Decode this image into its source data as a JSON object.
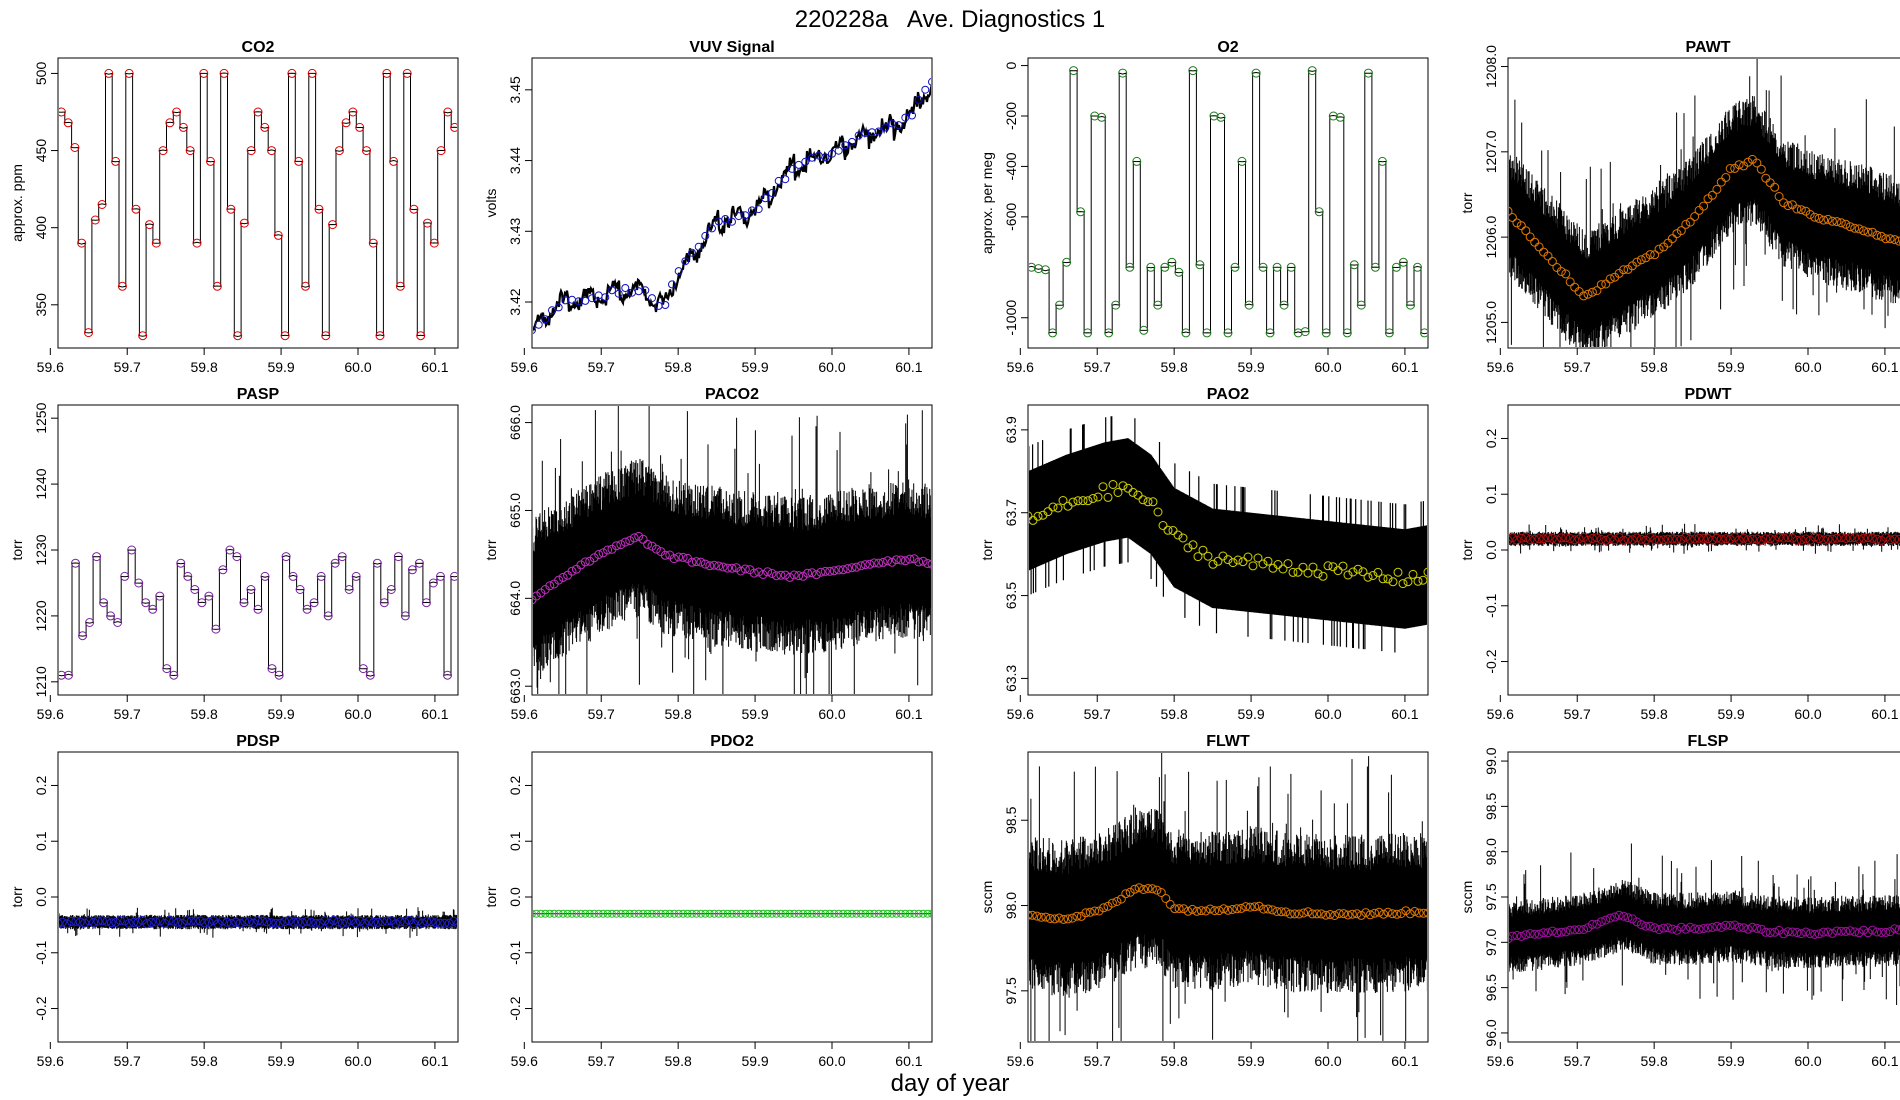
{
  "title": "220228a   Ave. Diagnostics 1",
  "xlabel": "day of year",
  "chart_data": [
    {
      "title": "CO2",
      "type": "line",
      "ylabel": "approx. ppm",
      "xlim": [
        59.61,
        60.13
      ],
      "ylim": [
        322,
        510
      ],
      "xticks": [
        59.6,
        59.7,
        59.8,
        59.9,
        60.0,
        60.1
      ],
      "xtick_labels": [
        "59.6",
        "59.7",
        "59.8",
        "59.9",
        "60.0",
        "60.1"
      ],
      "yticks": [
        350,
        400,
        450,
        500
      ],
      "ytick_labels": [
        "350",
        "400",
        "450",
        "500"
      ],
      "marker_color": "#e00000",
      "pattern": "steps",
      "levels": [
        475,
        468,
        452,
        390,
        332,
        405,
        415,
        500,
        443,
        362,
        500,
        412,
        330,
        402,
        390,
        450,
        468,
        475,
        465,
        450,
        390,
        500,
        443,
        362,
        500,
        412,
        330,
        403,
        450,
        475,
        465,
        450,
        395,
        330,
        500,
        443,
        362,
        500,
        412,
        330,
        402,
        450,
        468,
        475,
        465,
        450,
        390,
        330,
        500,
        443,
        362,
        500,
        412,
        330,
        403,
        390,
        450,
        475,
        465
      ]
    },
    {
      "title": "VUV Signal",
      "type": "line",
      "ylabel": "volts",
      "xlim": [
        59.61,
        60.13
      ],
      "ylim": [
        3.4135,
        3.4545
      ],
      "xticks": [
        59.6,
        59.7,
        59.8,
        59.9,
        60.0,
        60.1
      ],
      "xtick_labels": [
        "59.6",
        "59.7",
        "59.8",
        "59.9",
        "60.0",
        "60.1"
      ],
      "yticks": [
        3.42,
        3.43,
        3.44,
        3.45
      ],
      "ytick_labels": [
        "3.42",
        "3.43",
        "3.44",
        "3.45"
      ],
      "marker_color": "#1010c0",
      "pattern": "trend",
      "points": [
        [
          59.61,
          3.416
        ],
        [
          59.65,
          3.42
        ],
        [
          59.7,
          3.421
        ],
        [
          59.75,
          3.422
        ],
        [
          59.78,
          3.419
        ],
        [
          59.8,
          3.424
        ],
        [
          59.85,
          3.431
        ],
        [
          59.9,
          3.433
        ],
        [
          59.95,
          3.439
        ],
        [
          60.0,
          3.441
        ],
        [
          60.05,
          3.444
        ],
        [
          60.1,
          3.446
        ],
        [
          60.13,
          3.451
        ]
      ]
    },
    {
      "title": "O2",
      "type": "line",
      "ylabel": "approx. per meg",
      "xlim": [
        59.61,
        60.13
      ],
      "ylim": [
        -1120,
        30
      ],
      "xticks": [
        59.6,
        59.7,
        59.8,
        59.9,
        60.0,
        60.1
      ],
      "xtick_labels": [
        "59.6",
        "59.7",
        "59.8",
        "59.9",
        "60.0",
        "60.1"
      ],
      "yticks": [
        0,
        -200,
        -400,
        -600,
        -1000
      ],
      "ytick_labels": [
        "0",
        "-200",
        "-400",
        "-600",
        "-1000"
      ],
      "marker_color": "#1a7a1a",
      "pattern": "steps",
      "levels": [
        -800,
        -805,
        -810,
        -1060,
        -950,
        -780,
        -20,
        -580,
        -1060,
        -200,
        -205,
        -1060,
        -950,
        -30,
        -800,
        -380,
        -1050,
        -800,
        -950,
        -800,
        -780,
        -820,
        -1060,
        -20,
        -790,
        -1060,
        -200,
        -205,
        -1060,
        -800,
        -380,
        -950,
        -30,
        -800,
        -1060,
        -800,
        -950,
        -800,
        -1060,
        -1055,
        -20,
        -580,
        -1060,
        -200,
        -205,
        -1060,
        -790,
        -950,
        -30,
        -800,
        -380,
        -1060,
        -800,
        -780,
        -950,
        -800,
        -1060
      ]
    },
    {
      "title": "PAWT",
      "type": "line",
      "ylabel": "torr",
      "xlim": [
        59.61,
        60.13
      ],
      "ylim": [
        1204.7,
        1208.1
      ],
      "xticks": [
        59.6,
        59.7,
        59.8,
        59.9,
        60.0,
        60.1
      ],
      "xtick_labels": [
        "59.6",
        "59.7",
        "59.8",
        "59.9",
        "60.0",
        "60.1"
      ],
      "yticks": [
        1205.0,
        1206.0,
        1207.0,
        1208.0
      ],
      "ytick_labels": [
        "1205.0",
        "1206.0",
        "1207.0",
        "1208.0"
      ],
      "marker_color": "#e07800",
      "pattern": "smooth",
      "noise": 0.45,
      "points": [
        [
          59.61,
          1206.3
        ],
        [
          59.66,
          1205.8
        ],
        [
          59.71,
          1205.3
        ],
        [
          59.76,
          1205.6
        ],
        [
          59.8,
          1205.8
        ],
        [
          59.85,
          1206.2
        ],
        [
          59.9,
          1206.8
        ],
        [
          59.93,
          1206.9
        ],
        [
          59.97,
          1206.4
        ],
        [
          60.02,
          1206.2
        ],
        [
          60.07,
          1206.1
        ],
        [
          60.13,
          1205.9
        ]
      ]
    },
    {
      "title": "PASP",
      "type": "line",
      "ylabel": "torr",
      "xlim": [
        59.61,
        60.13
      ],
      "ylim": [
        1208,
        1252
      ],
      "xticks": [
        59.6,
        59.7,
        59.8,
        59.9,
        60.0,
        60.1
      ],
      "xtick_labels": [
        "59.6",
        "59.7",
        "59.8",
        "59.9",
        "60.0",
        "60.1"
      ],
      "yticks": [
        1210,
        1220,
        1230,
        1240,
        1250
      ],
      "ytick_labels": [
        "1210",
        "1220",
        "1230",
        "1240",
        "1250"
      ],
      "marker_color": "#7a20a0",
      "pattern": "steps",
      "levels": [
        1211,
        1211,
        1228,
        1217,
        1219,
        1229,
        1222,
        1220,
        1219,
        1226,
        1230,
        1225,
        1222,
        1221,
        1223,
        1212,
        1211,
        1228,
        1226,
        1224,
        1222,
        1223,
        1218,
        1227,
        1230,
        1229,
        1222,
        1224,
        1221,
        1226,
        1212,
        1211,
        1229,
        1226,
        1224,
        1221,
        1222,
        1226,
        1220,
        1228,
        1229,
        1224,
        1226,
        1212,
        1211,
        1228,
        1222,
        1224,
        1229,
        1220,
        1227,
        1228,
        1222,
        1225,
        1226,
        1211,
        1226
      ]
    },
    {
      "title": "PACO2",
      "type": "line",
      "ylabel": "torr",
      "xlim": [
        59.61,
        60.13
      ],
      "ylim": [
        662.9,
        666.2
      ],
      "xticks": [
        59.6,
        59.7,
        59.8,
        59.9,
        60.0,
        60.1
      ],
      "xtick_labels": [
        "59.6",
        "59.7",
        "59.8",
        "59.9",
        "60.0",
        "60.1"
      ],
      "yticks": [
        663.0,
        664.0,
        665.0,
        666.0
      ],
      "ytick_labels": [
        "663.0",
        "664.0",
        "665.0",
        "666.0"
      ],
      "marker_color": "#c030c0",
      "pattern": "smooth",
      "noise": 0.55,
      "points": [
        [
          59.61,
          664.0
        ],
        [
          59.66,
          664.3
        ],
        [
          59.71,
          664.55
        ],
        [
          59.75,
          664.7
        ],
        [
          59.78,
          664.5
        ],
        [
          59.83,
          664.4
        ],
        [
          59.9,
          664.3
        ],
        [
          59.95,
          664.25
        ],
        [
          60.0,
          664.3
        ],
        [
          60.05,
          664.4
        ],
        [
          60.1,
          664.45
        ],
        [
          60.13,
          664.4
        ]
      ]
    },
    {
      "title": "PAO2",
      "type": "line",
      "ylabel": "torr",
      "xlim": [
        59.61,
        60.13
      ],
      "ylim": [
        63.26,
        63.96
      ],
      "xticks": [
        59.6,
        59.7,
        59.8,
        59.9,
        60.0,
        60.1
      ],
      "xtick_labels": [
        "59.6",
        "59.7",
        "59.8",
        "59.9",
        "60.0",
        "60.1"
      ],
      "yticks": [
        63.3,
        63.5,
        63.7,
        63.9
      ],
      "ytick_labels": [
        "63.3",
        "63.5",
        "63.7",
        "63.9"
      ],
      "marker_color": "#d0d000",
      "pattern": "band",
      "points": [
        [
          59.61,
          63.68
        ],
        [
          59.66,
          63.72
        ],
        [
          59.71,
          63.75
        ],
        [
          59.74,
          63.76
        ],
        [
          59.77,
          63.72
        ],
        [
          59.8,
          63.64
        ],
        [
          59.85,
          63.59
        ],
        [
          59.9,
          63.58
        ],
        [
          59.95,
          63.57
        ],
        [
          60.0,
          63.56
        ],
        [
          60.05,
          63.55
        ],
        [
          60.1,
          63.54
        ],
        [
          60.13,
          63.55
        ]
      ]
    },
    {
      "title": "PDWT",
      "type": "line",
      "ylabel": "torr",
      "xlim": [
        59.61,
        60.13
      ],
      "ylim": [
        -0.26,
        0.26
      ],
      "xticks": [
        59.6,
        59.7,
        59.8,
        59.9,
        60.0,
        60.1
      ],
      "xtick_labels": [
        "59.6",
        "59.7",
        "59.8",
        "59.9",
        "60.0",
        "60.1"
      ],
      "yticks": [
        -0.2,
        -0.1,
        0.0,
        0.1,
        0.2
      ],
      "ytick_labels": [
        "-0.2",
        "-0.1",
        "0.0",
        "0.1",
        "0.2"
      ],
      "marker_color": "#b01010",
      "pattern": "smooth",
      "noise": 0.05,
      "points": [
        [
          59.61,
          0.02
        ],
        [
          60.13,
          0.02
        ]
      ]
    },
    {
      "title": "PDSP",
      "type": "line",
      "ylabel": "torr",
      "xlim": [
        59.61,
        60.13
      ],
      "ylim": [
        -0.26,
        0.26
      ],
      "xticks": [
        59.6,
        59.7,
        59.8,
        59.9,
        60.0,
        60.1
      ],
      "xtick_labels": [
        "59.6",
        "59.7",
        "59.8",
        "59.9",
        "60.0",
        "60.1"
      ],
      "yticks": [
        -0.2,
        -0.1,
        0.0,
        0.1,
        0.2
      ],
      "ytick_labels": [
        "-0.2",
        "-0.1",
        "0.0",
        "0.1",
        "0.2"
      ],
      "marker_color": "#2020d0",
      "pattern": "smooth",
      "noise": 0.05,
      "points": [
        [
          59.61,
          -0.045
        ],
        [
          60.13,
          -0.045
        ]
      ]
    },
    {
      "title": "PDO2",
      "type": "line",
      "ylabel": "torr",
      "xlim": [
        59.61,
        60.13
      ],
      "ylim": [
        -0.26,
        0.26
      ],
      "xticks": [
        59.6,
        59.7,
        59.8,
        59.9,
        60.0,
        60.1
      ],
      "xtick_labels": [
        "59.6",
        "59.7",
        "59.8",
        "59.9",
        "60.0",
        "60.1"
      ],
      "yticks": [
        -0.2,
        -0.1,
        0.0,
        0.1,
        0.2
      ],
      "ytick_labels": [
        "-0.2",
        "-0.1",
        "0.0",
        "0.1",
        "0.2"
      ],
      "marker_color": "#20c020",
      "pattern": "flat",
      "points": [
        [
          59.61,
          -0.03
        ],
        [
          60.13,
          -0.03
        ]
      ]
    },
    {
      "title": "FLWT",
      "type": "line",
      "ylabel": "sccm",
      "xlim": [
        59.61,
        60.13
      ],
      "ylim": [
        97.2,
        98.9
      ],
      "xticks": [
        59.6,
        59.7,
        59.8,
        59.9,
        60.0,
        60.1
      ],
      "xtick_labels": [
        "59.6",
        "59.7",
        "59.8",
        "59.9",
        "60.0",
        "60.1"
      ],
      "yticks": [
        97.5,
        98.0,
        98.5
      ],
      "ytick_labels": [
        "97.5",
        "98.0",
        "98.5"
      ],
      "marker_color": "#e07800",
      "pattern": "smooth",
      "noise": 0.55,
      "points": [
        [
          59.61,
          97.95
        ],
        [
          59.66,
          97.92
        ],
        [
          59.71,
          97.98
        ],
        [
          59.75,
          98.1
        ],
        [
          59.78,
          98.1
        ],
        [
          59.8,
          97.98
        ],
        [
          59.85,
          97.97
        ],
        [
          59.9,
          98.0
        ],
        [
          59.95,
          97.96
        ],
        [
          60.0,
          97.95
        ],
        [
          60.05,
          97.95
        ],
        [
          60.1,
          97.96
        ],
        [
          60.13,
          97.96
        ]
      ]
    },
    {
      "title": "FLSP",
      "type": "line",
      "ylabel": "sccm",
      "xlim": [
        59.61,
        60.13
      ],
      "ylim": [
        95.9,
        99.1
      ],
      "xticks": [
        59.6,
        59.7,
        59.8,
        59.9,
        60.0,
        60.1
      ],
      "xtick_labels": [
        "59.6",
        "59.7",
        "59.8",
        "59.9",
        "60.0",
        "60.1"
      ],
      "yticks": [
        96.0,
        96.5,
        97.0,
        97.5,
        98.0,
        98.5,
        99.0
      ],
      "ytick_labels": [
        "96.0",
        "96.5",
        "97.0",
        "97.5",
        "98.0",
        "98.5",
        "99.0"
      ],
      "marker_color": "#a010a0",
      "pattern": "smooth",
      "noise": 0.25,
      "points": [
        [
          59.61,
          97.05
        ],
        [
          59.66,
          97.1
        ],
        [
          59.71,
          97.15
        ],
        [
          59.76,
          97.3
        ],
        [
          59.8,
          97.15
        ],
        [
          59.85,
          97.15
        ],
        [
          59.9,
          97.18
        ],
        [
          59.95,
          97.12
        ],
        [
          60.0,
          97.1
        ],
        [
          60.05,
          97.12
        ],
        [
          60.1,
          97.12
        ],
        [
          60.13,
          97.15
        ]
      ]
    }
  ]
}
